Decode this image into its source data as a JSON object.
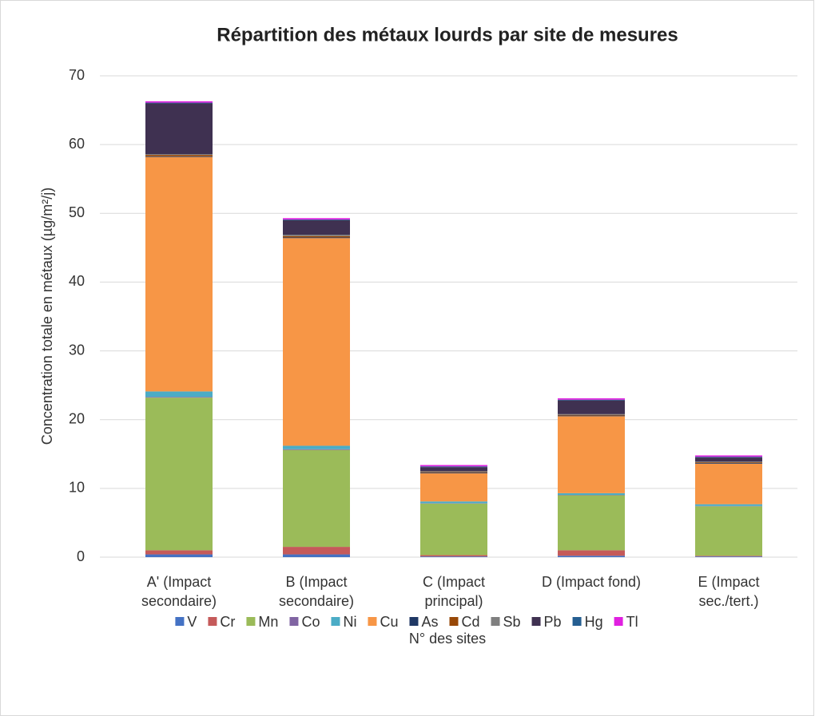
{
  "chart_data": {
    "type": "stacked_bar",
    "title": "Répartition des métaux lourds par site de mesures",
    "x_label": "N° des sites",
    "y_label": "Concentration totale en métaux (µg/m²/j)",
    "categories": [
      "A' (Impact secondaire)",
      "B (Impact secondaire)",
      "C (Impact principal)",
      "D (Impact fond)",
      "E (Impact sec./tert.)"
    ],
    "series": [
      {
        "name": "V",
        "color": "#4472c4",
        "values": [
          0.4,
          0.4,
          0.1,
          0.2,
          0.1
        ]
      },
      {
        "name": "Cr",
        "color": "#c55a5a",
        "values": [
          0.6,
          1.1,
          0.2,
          0.8,
          0.1
        ]
      },
      {
        "name": "Mn",
        "color": "#9bbb59",
        "values": [
          22.2,
          14.1,
          7.5,
          8.0,
          7.2
        ]
      },
      {
        "name": "Co",
        "color": "#8064a2",
        "values": [
          0.1,
          0.1,
          0.05,
          0.05,
          0.05
        ]
      },
      {
        "name": "Ni",
        "color": "#4bacc6",
        "values": [
          0.8,
          0.5,
          0.25,
          0.25,
          0.25
        ]
      },
      {
        "name": "Cu",
        "color": "#f79646",
        "values": [
          34.1,
          30.2,
          4.1,
          11.2,
          5.9
        ]
      },
      {
        "name": "As",
        "color": "#1f3864",
        "values": [
          0.1,
          0.1,
          0.1,
          0.1,
          0.1
        ]
      },
      {
        "name": "Cd",
        "color": "#984807",
        "values": [
          0.2,
          0.2,
          0.1,
          0.1,
          0.1
        ]
      },
      {
        "name": "Sb",
        "color": "#7f7f7f",
        "values": [
          0.1,
          0.2,
          0.1,
          0.1,
          0.1
        ]
      },
      {
        "name": "Pb",
        "color": "#3f3151",
        "values": [
          7.4,
          2.1,
          0.6,
          2.0,
          0.6
        ]
      },
      {
        "name": "Hg",
        "color": "#255e91",
        "values": [
          0.1,
          0.1,
          0.1,
          0.1,
          0.1
        ]
      },
      {
        "name": "Tl",
        "color": "#e020e0",
        "values": [
          0.2,
          0.2,
          0.2,
          0.2,
          0.2
        ]
      }
    ],
    "ylim": [
      0,
      70
    ],
    "yticks": [
      0,
      10,
      20,
      30,
      40,
      50,
      60,
      70
    ],
    "grid": true,
    "legend": "bottom"
  }
}
